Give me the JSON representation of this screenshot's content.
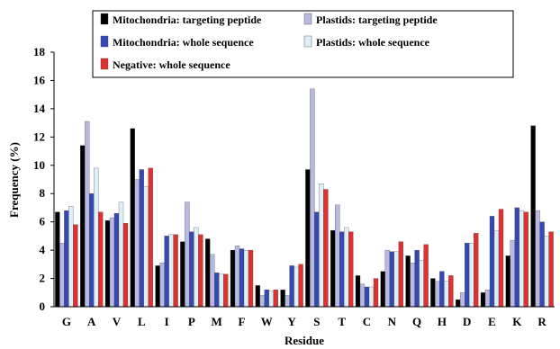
{
  "chart_data": {
    "type": "bar",
    "title": "",
    "xlabel": "Residue",
    "ylabel": "Frequency (%)",
    "ylim": [
      0,
      18
    ],
    "yticks": [
      0,
      2,
      4,
      6,
      8,
      10,
      12,
      14,
      16,
      18
    ],
    "grid": false,
    "legend_position": "top",
    "categories": [
      "G",
      "A",
      "V",
      "L",
      "I",
      "P",
      "M",
      "F",
      "W",
      "Y",
      "S",
      "T",
      "C",
      "N",
      "Q",
      "H",
      "D",
      "E",
      "K",
      "R"
    ],
    "series": [
      {
        "name": "Mitochondria: targeting peptide",
        "color": "#000000",
        "values": [
          6.7,
          11.4,
          6.1,
          12.6,
          2.9,
          4.6,
          4.8,
          4.0,
          1.5,
          1.2,
          9.7,
          5.4,
          2.2,
          2.5,
          3.6,
          2.0,
          0.5,
          1.0,
          3.6,
          12.8
        ]
      },
      {
        "name": "Plastids: targeting peptide",
        "color": "#b8b8e0",
        "values": [
          4.5,
          13.1,
          6.3,
          9.0,
          3.1,
          7.4,
          3.7,
          4.3,
          0.8,
          0.8,
          15.4,
          7.2,
          1.6,
          4.0,
          3.1,
          1.8,
          1.0,
          1.2,
          4.7,
          6.8
        ]
      },
      {
        "name": "Mitochondria: whole sequence",
        "color": "#3549b0",
        "values": [
          6.8,
          8.0,
          6.6,
          9.7,
          5.0,
          5.3,
          2.4,
          4.1,
          1.2,
          2.9,
          6.7,
          5.3,
          1.4,
          3.9,
          4.0,
          2.5,
          4.5,
          6.4,
          7.0,
          6.0
        ]
      },
      {
        "name": "Plastids: whole sequence",
        "color": "#ddf0f8",
        "values": [
          7.1,
          9.8,
          7.4,
          8.5,
          5.1,
          5.6,
          2.3,
          4.0,
          1.1,
          2.8,
          8.7,
          5.6,
          1.4,
          3.9,
          3.3,
          1.8,
          4.5,
          5.4,
          6.8,
          5.0
        ]
      },
      {
        "name": "Negative: whole sequence",
        "color": "#e03030",
        "values": [
          5.8,
          6.7,
          5.9,
          9.8,
          5.1,
          5.1,
          2.3,
          4.0,
          1.2,
          3.0,
          8.3,
          5.3,
          2.0,
          4.6,
          4.4,
          2.2,
          5.2,
          6.9,
          6.7,
          5.3
        ]
      }
    ]
  }
}
